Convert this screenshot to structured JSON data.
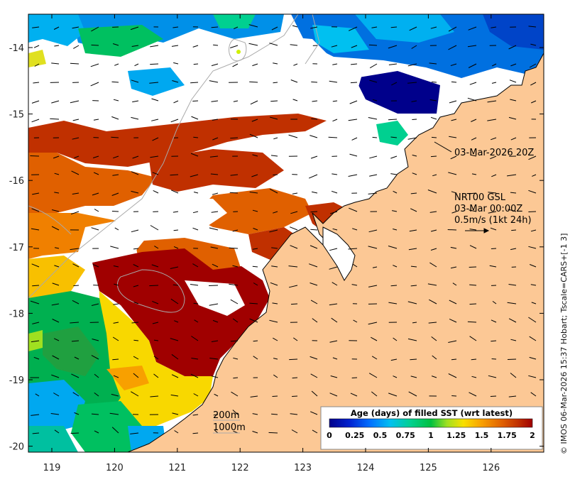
{
  "map": {
    "longitude_ticks": [
      "119",
      "120",
      "121",
      "122",
      "123",
      "124",
      "125",
      "126"
    ],
    "latitude_ticks": [
      "-14",
      "-15",
      "-16",
      "-17",
      "-18",
      "-19",
      "-20"
    ]
  },
  "annotations": {
    "timestamp": "03-Mar-2026 20Z",
    "wind_model": "NRT00 GSL",
    "wind_time": "03-Mar 00:00Z",
    "wind_scale": "0.5m/s (1kt 24h)",
    "contour_200": "200m",
    "contour_1000": "1000m"
  },
  "colorbar": {
    "title": "Age (days) of filled SST (wrt latest)",
    "ticks": [
      "0",
      "0.25",
      "0.5",
      "0.75",
      "1",
      "1.25",
      "1.5",
      "1.75",
      "2"
    ],
    "range": [
      0,
      2
    ]
  },
  "credit": "© IMOS 06-Mar-2026 15:37 Hobart; Tscale=CARS+[-1 3]",
  "colors": {
    "land": "#fcc895",
    "age_0": "#00008b",
    "age_1": "#00c040",
    "age_2": "#a00000"
  }
}
